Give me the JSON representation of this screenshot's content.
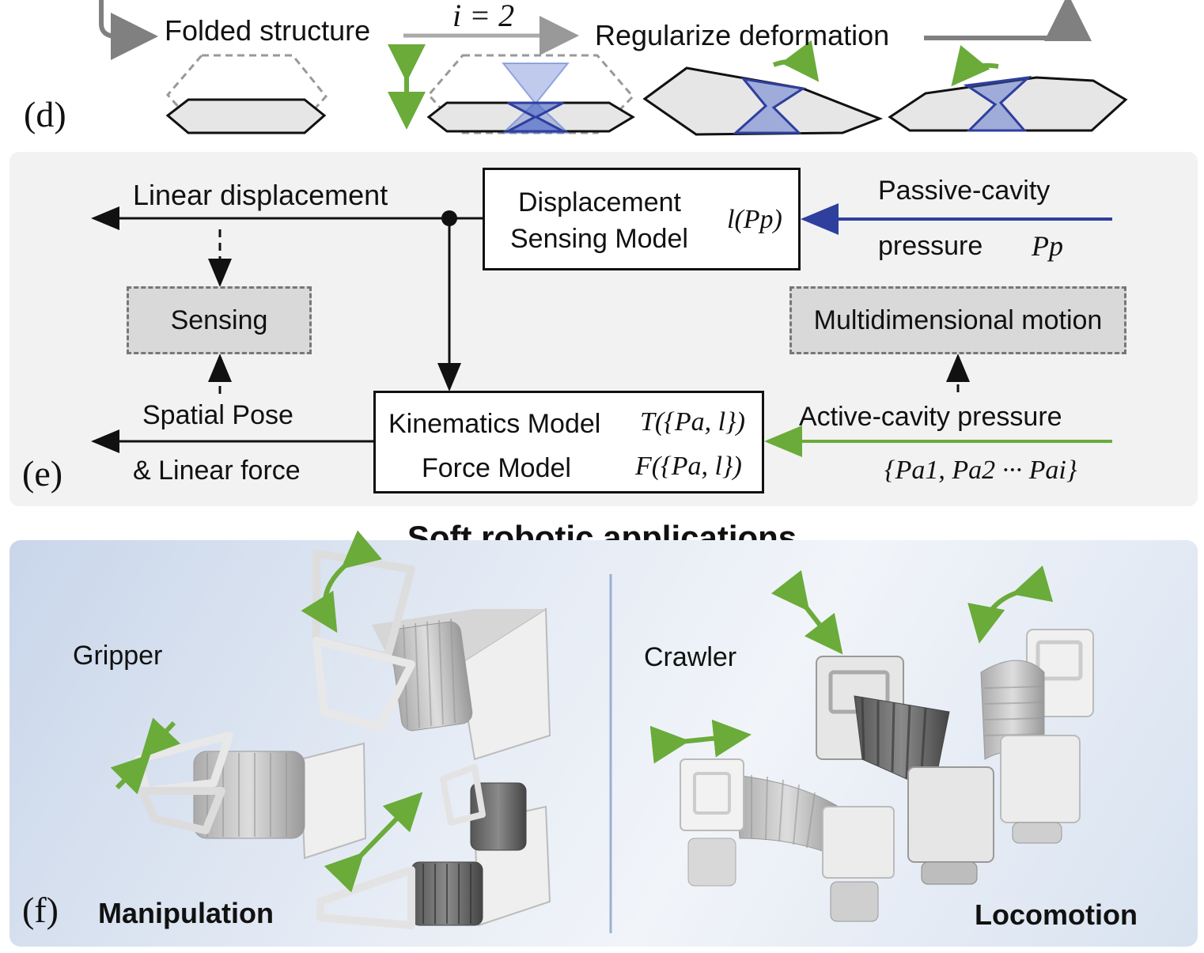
{
  "panel_d": {
    "label": "(d)",
    "folded_structure": "Folded structure",
    "iteration": "i = 2",
    "regularize": "Regularize deformation"
  },
  "panel_e": {
    "label": "(e)",
    "linear_displacement": "Linear displacement",
    "sensing": "Sensing",
    "spatial_pose": "Spatial Pose",
    "linear_force": "& Linear force",
    "displacement_model_line1": "Displacement",
    "displacement_model_line2": "Sensing Model",
    "displacement_formula": "l(Pp)",
    "passive_cavity": "Passive-cavity",
    "pressure": "pressure",
    "pressure_symbol": "Pp",
    "multidimensional_motion": "Multidimensional motion",
    "active_cavity_pressure": "Active-cavity pressure",
    "active_pressures": "{Pa1, Pa2 ··· Pai}",
    "kinematics_model": "Kinematics Model",
    "kinematics_formula": "T({Pa, l})",
    "force_model": "Force Model",
    "force_formula": "F({Pa, l})"
  },
  "panel_f": {
    "label": "(f)",
    "title": "Soft robotic applications",
    "gripper": "Gripper",
    "crawler": "Crawler",
    "manipulation": "Manipulation",
    "locomotion": "Locomotion"
  },
  "colors": {
    "blue_arrow": "#2e3f9e",
    "green_arrow": "#6aab3a",
    "blue_fill": "#4a67c9",
    "gray_fill": "#e6e6e6",
    "panel_bg": "#f2f2f2"
  }
}
